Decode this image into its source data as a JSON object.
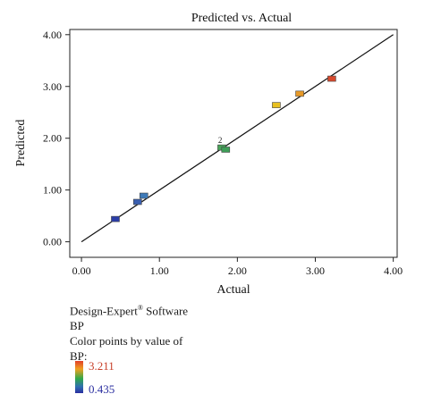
{
  "chart_data": {
    "type": "scatter",
    "title": "Predicted vs. Actual",
    "xlabel": "Actual",
    "ylabel": "Predicted",
    "xlim": [
      -0.15,
      4.05
    ],
    "ylim": [
      -0.3,
      4.1
    ],
    "xticks": [
      "0.00",
      "1.00",
      "2.00",
      "3.00",
      "4.00"
    ],
    "yticks": [
      "0.00",
      "1.00",
      "2.00",
      "3.00",
      "4.00"
    ],
    "reference_line": {
      "from": [
        0.0,
        0.0
      ],
      "to": [
        4.0,
        4.0
      ]
    },
    "points": [
      {
        "x": 0.435,
        "y": 0.44,
        "color": "#2b3ea8"
      },
      {
        "x": 0.72,
        "y": 0.77,
        "color": "#3a5fb0"
      },
      {
        "x": 0.8,
        "y": 0.89,
        "color": "#3e7ab8"
      },
      {
        "x": 1.8,
        "y": 1.82,
        "color": "#4aa45a"
      },
      {
        "x": 1.85,
        "y": 1.78,
        "color": "#3f9e58"
      },
      {
        "x": 2.5,
        "y": 2.64,
        "color": "#e8c020"
      },
      {
        "x": 2.8,
        "y": 2.86,
        "color": "#e89a28"
      },
      {
        "x": 3.211,
        "y": 3.15,
        "color": "#d8492c"
      }
    ],
    "point_annotation": {
      "x": 1.78,
      "y": 1.86,
      "text": "2"
    }
  },
  "legend": {
    "software": "Design-Expert",
    "software_suffix": " Software",
    "trademark": "®",
    "response": "BP",
    "color_note": "Color points by value of",
    "color_var": "BP:",
    "max_value": "3.211",
    "max_color": "#c8402a",
    "min_value": "0.435",
    "min_color": "#2b2fa0"
  }
}
